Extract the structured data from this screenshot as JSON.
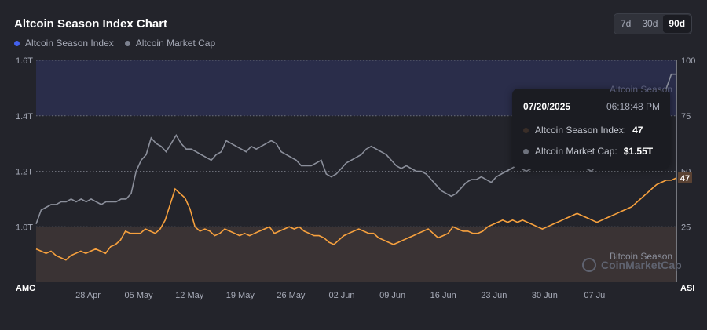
{
  "header": {
    "title": "Altcoin Season Index Chart",
    "legend": [
      {
        "label": "Altcoin Season Index",
        "color": "#4361ee"
      },
      {
        "label": "Altcoin Market Cap",
        "color": "#7d8290"
      }
    ],
    "ranges": [
      "7d",
      "30d",
      "90d"
    ],
    "active_range": "90d"
  },
  "tooltip": {
    "date": "07/20/2025",
    "time": "06:18:48 PM",
    "index_label": "Altcoin Season Index:",
    "index_value": "47",
    "mcap_label": "Altcoin Market Cap:",
    "mcap_value": "$1.55T"
  },
  "zones": {
    "top": "Altcoin Season",
    "bottom": "Bitcoin Season"
  },
  "watermark": "CoinMarketCap",
  "current_badge": "47",
  "colors": {
    "index_line": "#f7a13e",
    "mcap_line": "#8b8f9b",
    "altseason_zone": "#2a2d4a",
    "btcseason_zone": "#3a3334"
  },
  "chart_data": {
    "type": "line",
    "x_ticks": [
      "28 Apr",
      "05 May",
      "12 May",
      "19 May",
      "26 May",
      "02 Jun",
      "09 Jun",
      "16 Jun",
      "23 Jun",
      "30 Jun",
      "07 Jul"
    ],
    "left_axis": {
      "label": "AMC",
      "ticks": [
        "1.0T",
        "1.2T",
        "1.4T",
        "1.6T"
      ],
      "range": [
        0.8,
        1.6
      ]
    },
    "right_axis": {
      "label": "ASI",
      "ticks": [
        "25",
        "50",
        "75",
        "100"
      ],
      "range": [
        0,
        100
      ]
    },
    "series": [
      {
        "name": "Altcoin Season Index",
        "axis": "right",
        "values": [
          15,
          14,
          13,
          14,
          12,
          11,
          10,
          12,
          13,
          14,
          13,
          14,
          15,
          14,
          13,
          16,
          17,
          19,
          23,
          22,
          22,
          22,
          24,
          23,
          22,
          24,
          28,
          35,
          42,
          40,
          38,
          33,
          25,
          23,
          24,
          23,
          21,
          22,
          24,
          23,
          22,
          21,
          22,
          21,
          22,
          23,
          24,
          25,
          22,
          23,
          24,
          25,
          24,
          25,
          23,
          22,
          21,
          21,
          20,
          18,
          17,
          19,
          21,
          22,
          23,
          24,
          23,
          22,
          22,
          20,
          19,
          18,
          17,
          18,
          19,
          20,
          21,
          22,
          23,
          24,
          22,
          20,
          21,
          22,
          25,
          24,
          23,
          23,
          22,
          22,
          23,
          25,
          26,
          27,
          28,
          27,
          28,
          27,
          28,
          27,
          26,
          25,
          24,
          25,
          26,
          27,
          28,
          29,
          30,
          31,
          30,
          29,
          28,
          27,
          28,
          29,
          30,
          31,
          32,
          33,
          34,
          36,
          38,
          40,
          42,
          44,
          45,
          46,
          46,
          47
        ]
      },
      {
        "name": "Altcoin Market Cap",
        "axis": "left",
        "values": [
          1.01,
          1.06,
          1.07,
          1.08,
          1.08,
          1.09,
          1.09,
          1.1,
          1.09,
          1.1,
          1.09,
          1.1,
          1.09,
          1.08,
          1.09,
          1.09,
          1.09,
          1.1,
          1.1,
          1.12,
          1.2,
          1.24,
          1.26,
          1.32,
          1.3,
          1.29,
          1.27,
          1.3,
          1.33,
          1.3,
          1.28,
          1.28,
          1.27,
          1.26,
          1.25,
          1.24,
          1.26,
          1.27,
          1.31,
          1.3,
          1.29,
          1.28,
          1.27,
          1.29,
          1.28,
          1.29,
          1.3,
          1.31,
          1.3,
          1.27,
          1.26,
          1.25,
          1.24,
          1.22,
          1.22,
          1.22,
          1.23,
          1.24,
          1.19,
          1.18,
          1.19,
          1.21,
          1.23,
          1.24,
          1.25,
          1.26,
          1.28,
          1.29,
          1.28,
          1.27,
          1.26,
          1.24,
          1.22,
          1.21,
          1.22,
          1.21,
          1.2,
          1.2,
          1.19,
          1.17,
          1.15,
          1.13,
          1.12,
          1.11,
          1.12,
          1.14,
          1.16,
          1.17,
          1.17,
          1.18,
          1.17,
          1.16,
          1.18,
          1.19,
          1.2,
          1.21,
          1.22,
          1.21,
          1.2,
          1.21,
          1.22,
          1.23,
          1.22,
          1.23,
          1.24,
          1.22,
          1.21,
          1.23,
          1.24,
          1.22,
          1.21,
          1.2,
          1.22,
          1.24,
          1.25,
          1.26,
          1.27,
          1.28,
          1.3,
          1.32,
          1.34,
          1.36,
          1.38,
          1.4,
          1.43,
          1.46,
          1.5,
          1.55,
          1.55
        ]
      }
    ],
    "zones": [
      {
        "name": "Altcoin Season",
        "range": [
          75,
          100
        ]
      },
      {
        "name": "Bitcoin Season",
        "range": [
          0,
          25
        ]
      }
    ],
    "grid": true
  }
}
